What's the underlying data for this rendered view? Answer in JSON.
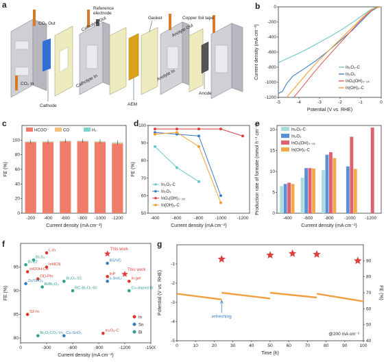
{
  "panels": {
    "a": "a",
    "b": "b",
    "c": "c",
    "d": "d",
    "e": "e",
    "f": "f",
    "g": "g"
  },
  "schematic": {
    "labels": {
      "co2_out": "CO₂ Out",
      "co2_in": "CO₂ In",
      "cathode": "Cathode",
      "reference": "Reference\nelectrode",
      "catholyte_out": "Catholyte Out",
      "catholyte_in": "Catholyte In",
      "gasket": "Gasket",
      "aem": "AEM",
      "anolyte_out": "Anolyte Out",
      "anolyte_in": "Anolyte In",
      "copper": "Copper foil tape",
      "anode": "Anode"
    },
    "colors": {
      "cathode": "#2f6fd6",
      "aem": "#d9a21a",
      "anode": "#555555",
      "copper": "#d77a2a",
      "plate": "#c9c9cf",
      "gasket": "#e8e6b8"
    }
  },
  "chart_data": [
    {
      "id": "b",
      "type": "line",
      "xlabel": "Potential (V vs. RHE)",
      "ylabel": "Current density (mA cm⁻²)",
      "xlim": [
        -5,
        0
      ],
      "ylim": [
        -1200,
        0
      ],
      "xticks": [
        -5,
        -4,
        -3,
        -2,
        -1,
        0
      ],
      "yticks": [
        0,
        -200,
        -400,
        -600,
        -800,
        -1000,
        -1200
      ],
      "series": [
        {
          "name": "In₂O₃-C",
          "color": "#6bc6c6",
          "x": [
            -5,
            -4.6,
            -4.2,
            -3.6,
            -3,
            -2.4,
            -1.8,
            -1.2,
            -0.8,
            -0.5,
            -0.3,
            0
          ],
          "y": [
            -740,
            -690,
            -640,
            -560,
            -470,
            -380,
            -280,
            -170,
            -90,
            -35,
            -10,
            0
          ]
        },
        {
          "name": "In₂O₃",
          "color": "#3a7cc9",
          "x": [
            -5,
            -4.8,
            -4.6,
            -4.3,
            -3.8,
            -3.2,
            -2.6,
            -2,
            -1.4,
            -0.9,
            -0.5,
            -0.2,
            0
          ],
          "y": [
            -1150,
            -1120,
            -1020,
            -920,
            -830,
            -720,
            -590,
            -450,
            -310,
            -170,
            -60,
            -10,
            0
          ]
        },
        {
          "name": "InOₓ(OH)₃₋₂ₓ",
          "color": "#e06060",
          "x": [
            -4.25,
            -3.8,
            -3.3,
            -2.8,
            -2.2,
            -1.6,
            -1.1,
            -0.7,
            -0.4,
            -0.2,
            0
          ],
          "y": [
            -1200,
            -1050,
            -880,
            -720,
            -540,
            -360,
            -210,
            -100,
            -35,
            -8,
            0
          ]
        },
        {
          "name": "In(OH)₃-C",
          "color": "#f0a030",
          "x": [
            -4.6,
            -4.1,
            -3.6,
            -3,
            -2.4,
            -1.8,
            -1.2,
            -0.8,
            -0.5,
            -0.25,
            0
          ],
          "y": [
            -1200,
            -1040,
            -880,
            -700,
            -540,
            -380,
            -220,
            -110,
            -45,
            -10,
            0
          ]
        }
      ]
    },
    {
      "id": "c",
      "type": "bar",
      "stacked": true,
      "xlabel": "Current density (mA cm⁻²)",
      "ylabel": "FE (%)",
      "categories": [
        "-200",
        "-400",
        "-600",
        "-800",
        "-1000",
        "-1200"
      ],
      "ylim": [
        0,
        120
      ],
      "yticks": [
        0,
        20,
        40,
        60,
        80,
        100
      ],
      "legend": [
        "HCOO⁻",
        "CO",
        "H₂"
      ],
      "series": [
        {
          "name": "HCOO⁻",
          "color": "#f07c6a",
          "values": [
            97,
            97,
            98,
            98,
            97,
            95
          ]
        },
        {
          "name": "CO",
          "color": "#f2c27a",
          "values": [
            0.5,
            0.5,
            0.5,
            0.5,
            0.8,
            1
          ]
        },
        {
          "name": "H₂",
          "color": "#7fd3d0",
          "values": [
            0.5,
            0.5,
            0.5,
            0.5,
            0.5,
            0.8
          ]
        }
      ]
    },
    {
      "id": "d",
      "type": "line",
      "xlabel": "Current density (mA cm⁻²)",
      "ylabel": "FE (%)",
      "categories": [
        "-400",
        "-600",
        "-800",
        "-1000",
        "-1200"
      ],
      "ylim": [
        50,
        100
      ],
      "yticks": [
        50,
        60,
        70,
        80,
        90,
        100
      ],
      "series": [
        {
          "name": "In₂O₃-C",
          "color": "#6bc6c6",
          "values": [
            88,
            76,
            68,
            null,
            null
          ]
        },
        {
          "name": "In₂O₃",
          "color": "#3a7cc9",
          "values": [
            96,
            95,
            94,
            60,
            null
          ]
        },
        {
          "name": "InOₓ(OH)₃₋₂ₓ",
          "color": "#d94040",
          "values": [
            98,
            98,
            98,
            98,
            94
          ]
        },
        {
          "name": "In(OH)₃-C",
          "color": "#f0a030",
          "values": [
            95,
            96,
            88,
            56,
            null
          ]
        }
      ]
    },
    {
      "id": "e",
      "type": "bar",
      "xlabel": "Current density (mA cm⁻²)",
      "ylabel": "Production rate of formate (mmol h⁻¹ cm⁻²)",
      "categories": [
        "-400",
        "-600",
        "-800",
        "-1000",
        "-1200"
      ],
      "ylim": [
        0,
        21
      ],
      "yticks": [
        0,
        5,
        10,
        15,
        20
      ],
      "series": [
        {
          "name": "In₂O₃-C",
          "color": "#a8dede",
          "values": [
            6.5,
            8.5,
            10.3,
            null,
            null
          ]
        },
        {
          "name": "In₂O₃",
          "color": "#5b8fd6",
          "values": [
            7.0,
            10.8,
            14.0,
            11.2,
            null
          ]
        },
        {
          "name": "InOₓ(OH)₃₋₂ₓ",
          "color": "#e06070",
          "values": [
            7.3,
            10.8,
            14.6,
            18.3,
            20.5
          ]
        },
        {
          "name": "In(OH)₃-C",
          "color": "#f3a84a",
          "values": [
            7.0,
            10.7,
            13.2,
            10.6,
            null
          ]
        }
      ]
    },
    {
      "id": "f",
      "type": "scatter",
      "xlabel": "Current density (mA cm⁻²)",
      "ylabel": "FE (%)",
      "xlim": [
        0,
        -1500
      ],
      "ylim": [
        79,
        100
      ],
      "xticks": [
        0,
        -300,
        -600,
        -900,
        -1200,
        -1500
      ],
      "yticks": [
        80,
        85,
        90,
        95
      ],
      "legend": [
        "In",
        "Sn",
        "Bi"
      ],
      "points": [
        {
          "label": "This work",
          "x": -1000,
          "y": 97.8,
          "group": "star",
          "color": "#e04040"
        },
        {
          "label": "This work",
          "x": -1200,
          "y": 93.5,
          "group": "star",
          "color": "#e04040"
        },
        {
          "label": "L-In",
          "x": -300,
          "y": 98,
          "group": "In",
          "color": "#d93a2b"
        },
        {
          "label": "Bi₂S₃",
          "x": -150,
          "y": 96.5,
          "group": "Bi",
          "color": "#2fa08c"
        },
        {
          "label": "Bi-B2",
          "x": -60,
          "y": 95.5,
          "group": "Bi",
          "color": "#2fa08c"
        },
        {
          "label": "InNCN",
          "x": -300,
          "y": 95,
          "group": "In",
          "color": "#d93a2b"
        },
        {
          "label": "BS/VC",
          "x": -1000,
          "y": 95.8,
          "group": "Sn",
          "color": "#2f7fc2"
        },
        {
          "label": "InOOH-Ov",
          "x": -80,
          "y": 94,
          "group": "In",
          "color": "#d93a2b"
        },
        {
          "label": "OD-PIn",
          "x": -200,
          "y": 92.5,
          "group": "In",
          "color": "#d93a2b"
        },
        {
          "label": "InP",
          "x": -1000,
          "y": 93,
          "group": "In",
          "color": "#d93a2b"
        },
        {
          "label": "Zn/SnO₂",
          "x": -60,
          "y": 91.5,
          "group": "Sn",
          "color": "#2f7fc2"
        },
        {
          "label": "Bi/Bi₂O₃",
          "x": -250,
          "y": 90.8,
          "group": "Bi",
          "color": "#2fa08c"
        },
        {
          "label": "Bi₂O₂-S1",
          "x": -500,
          "y": 92,
          "group": "Bi",
          "color": "#2fa08c"
        },
        {
          "label": "s-Sn/Li",
          "x": -1000,
          "y": 92,
          "group": "Sn",
          "color": "#2f7fc2"
        },
        {
          "label": "In gel",
          "x": -1250,
          "y": 92,
          "group": "In",
          "color": "#d93a2b"
        },
        {
          "label": "RC-Bi₂O₃ 60",
          "x": -600,
          "y": 90,
          "group": "Bi",
          "color": "#2fa08c"
        },
        {
          "label": "Cu-doped Bi",
          "x": -1250,
          "y": 90,
          "group": "Bi",
          "color": "#2fa08c"
        },
        {
          "label": "S2-In",
          "x": -80,
          "y": 85,
          "group": "In",
          "color": "#d93a2b"
        },
        {
          "label": "Bi₂O₂CO₃-Vc",
          "x": -200,
          "y": 80.5,
          "group": "Bi",
          "color": "#2fa08c"
        },
        {
          "label": "Cu-SnO₂",
          "x": -500,
          "y": 80.5,
          "group": "Sn",
          "color": "#2f7fc2"
        },
        {
          "label": "In₂O₃-C",
          "x": -950,
          "y": 81,
          "group": "In",
          "color": "#d93a2b"
        }
      ]
    },
    {
      "id": "g",
      "type": "scatter",
      "xlabel": "Time (h)",
      "ylabel": "Potential (V vs. RHE)",
      "y2label": "FE (%)",
      "xlim": [
        0,
        100
      ],
      "xticks": [
        0,
        10,
        20,
        30,
        40,
        50,
        60,
        70,
        80,
        90,
        100
      ],
      "ylim": [
        -5,
        0
      ],
      "yticks": [
        -1,
        -2,
        -3,
        -4,
        -5
      ],
      "y2lim": [
        40,
        100
      ],
      "y2ticks": [
        40,
        50,
        60,
        70,
        80,
        90
      ],
      "annotation_refresh": "refreshing",
      "annotation_current": "@200 mA cm⁻²",
      "stars": {
        "x": [
          24,
          50,
          62,
          75,
          97
        ],
        "fe": [
          91,
          93.5,
          94.5,
          94,
          90
        ],
        "color": "#d94040"
      },
      "potential_segments": [
        {
          "x": [
            0,
            24
          ],
          "y": [
            -2.55,
            -2.85
          ]
        },
        {
          "x": [
            24,
            50
          ],
          "y": [
            -2.5,
            -2.8
          ]
        },
        {
          "x": [
            50,
            75
          ],
          "y": [
            -2.5,
            -2.75
          ]
        },
        {
          "x": [
            75,
            100
          ],
          "y": [
            -2.55,
            -2.95
          ]
        }
      ],
      "potential_color": "#f0a040"
    }
  ]
}
